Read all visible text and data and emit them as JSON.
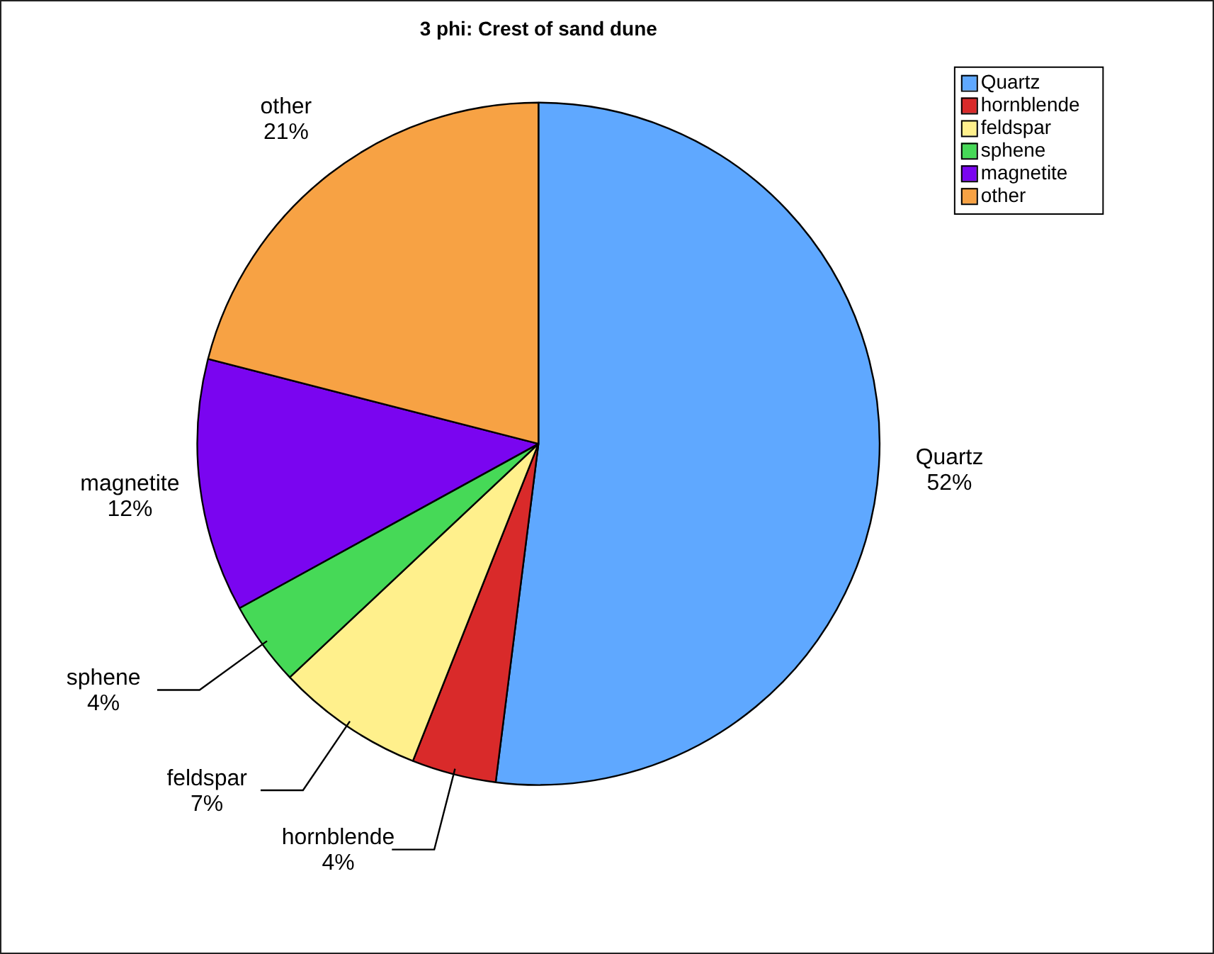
{
  "chart_data": {
    "type": "pie",
    "title": "3 phi: Crest of sand dune",
    "categories": [
      "Quartz",
      "hornblende",
      "feldspar",
      "sphene",
      "magnetite",
      "other"
    ],
    "values": [
      52,
      4,
      7,
      4,
      12,
      21
    ],
    "colors": [
      "#5fa8ff",
      "#d92a2a",
      "#fff08c",
      "#46d957",
      "#7a05f0",
      "#f7a244"
    ],
    "value_labels": [
      "52%",
      "4%",
      "7%",
      "4%",
      "12%",
      "21%"
    ],
    "legend": "top right"
  }
}
